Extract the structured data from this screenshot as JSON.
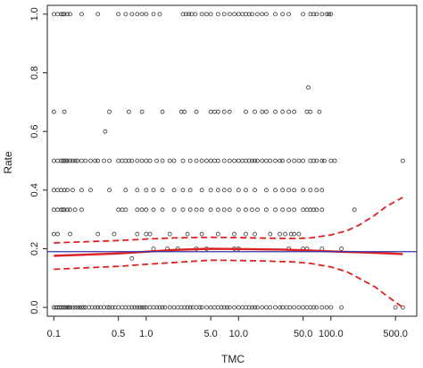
{
  "chart_data": {
    "type": "scatter",
    "title": "",
    "xlabel": "TMC",
    "ylabel": "Rate",
    "x_scale": "log",
    "xlim": [
      0.085,
      850
    ],
    "ylim": [
      -0.03,
      1.03
    ],
    "x_ticks": [
      {
        "value": 0.1,
        "label": "0.1"
      },
      {
        "value": 0.5,
        "label": "0.5"
      },
      {
        "value": 1,
        "label": "1.0"
      },
      {
        "value": 5,
        "label": "5.0"
      },
      {
        "value": 10,
        "label": "10.0"
      },
      {
        "value": 50,
        "label": "50.0"
      },
      {
        "value": 100,
        "label": "100.0"
      },
      {
        "value": 500,
        "label": "500.0"
      }
    ],
    "y_ticks": [
      {
        "value": 0.0,
        "label": "0.0"
      },
      {
        "value": 0.2,
        "label": "0.2"
      },
      {
        "value": 0.4,
        "label": "0.4"
      },
      {
        "value": 0.6,
        "label": "0.6"
      },
      {
        "value": 0.8,
        "label": "0.8"
      },
      {
        "value": 1.0,
        "label": "1.0"
      }
    ],
    "grid": false,
    "legend": "none",
    "points": {
      "1.0": [
        0.1,
        0.11,
        0.12,
        0.125,
        0.13,
        0.14,
        0.15,
        0.2,
        0.3,
        0.5,
        0.6,
        0.7,
        0.8,
        0.9,
        1.0,
        1.2,
        1.4,
        2.5,
        2.7,
        2.9,
        3.1,
        3.4,
        4,
        4.5,
        5,
        6,
        7,
        8,
        9,
        10,
        11,
        12,
        13,
        14,
        16,
        18,
        20,
        25,
        30,
        35,
        50,
        60,
        65,
        70,
        80,
        90,
        95,
        100
      ],
      "0.75": [
        57
      ],
      "0.667": [
        0.1,
        0.13,
        0.4,
        0.65,
        0.9,
        1.5,
        2.4,
        2.6,
        3.5,
        5,
        5.5,
        6,
        7,
        8,
        12,
        15,
        18,
        20,
        25,
        30,
        35,
        40,
        55,
        60,
        75
      ],
      "0.6": [
        0.36
      ],
      "0.5": [
        0.1,
        0.11,
        0.12,
        0.125,
        0.13,
        0.135,
        0.14,
        0.15,
        0.16,
        0.17,
        0.18,
        0.2,
        0.22,
        0.25,
        0.28,
        0.3,
        0.35,
        0.4,
        0.5,
        0.55,
        0.6,
        0.65,
        0.7,
        0.8,
        0.9,
        1.0,
        1.1,
        1.3,
        1.5,
        1.8,
        2,
        2.5,
        3,
        3.5,
        4,
        4.5,
        5,
        5.5,
        6,
        7,
        8,
        9,
        10,
        11,
        12,
        13,
        14,
        15,
        16,
        18,
        20,
        22,
        25,
        28,
        30,
        35,
        40,
        45,
        50,
        60,
        65,
        70,
        80,
        85,
        100,
        110,
        600
      ],
      "0.4": [
        0.1,
        0.11,
        0.12,
        0.13,
        0.14,
        0.16,
        0.2,
        0.25,
        0.4,
        0.6,
        0.8,
        1.0,
        1.2,
        1.5,
        2,
        2.5,
        3,
        4,
        5,
        6,
        7,
        8,
        10,
        12,
        15,
        20,
        25,
        30,
        35,
        40,
        50,
        60,
        70,
        80
      ],
      "0.333": [
        0.1,
        0.11,
        0.12,
        0.125,
        0.13,
        0.14,
        0.15,
        0.17,
        0.2,
        0.5,
        0.55,
        0.6,
        0.8,
        0.9,
        1.0,
        1.2,
        1.5,
        2,
        2.5,
        3,
        3.5,
        4,
        5,
        6,
        7,
        8,
        10,
        12,
        14,
        16,
        20,
        25,
        30,
        35,
        40,
        50,
        55,
        60,
        65,
        70,
        80,
        180
      ],
      "0.25": [
        0.1,
        0.11,
        0.15,
        0.3,
        0.45,
        0.8,
        1.0,
        1.1,
        1.8,
        2.8,
        4,
        6,
        9,
        12,
        15,
        22,
        28,
        32,
        37,
        40,
        45
      ],
      "0.2": [
        1.2,
        1.7,
        2.2,
        3.5,
        4.5,
        9,
        10,
        35,
        50,
        55,
        80,
        130
      ],
      "0.167": [
        0.7
      ],
      "0.0": [
        0.1,
        0.105,
        0.11,
        0.115,
        0.12,
        0.125,
        0.13,
        0.135,
        0.14,
        0.145,
        0.15,
        0.16,
        0.17,
        0.18,
        0.19,
        0.2,
        0.21,
        0.22,
        0.24,
        0.26,
        0.28,
        0.3,
        0.32,
        0.35,
        0.38,
        0.4,
        0.43,
        0.46,
        0.5,
        0.55,
        0.6,
        0.65,
        0.7,
        0.75,
        0.8,
        0.85,
        0.9,
        0.95,
        1.0,
        1.1,
        1.2,
        1.3,
        1.4,
        1.5,
        1.6,
        1.8,
        2,
        2.2,
        2.4,
        2.6,
        2.8,
        3,
        3.2,
        3.5,
        3.8,
        4,
        4.5,
        5,
        5.5,
        6,
        6.5,
        7,
        7.5,
        8,
        9,
        10,
        11,
        12,
        13,
        14,
        15,
        16,
        18,
        20,
        22,
        25,
        28,
        30,
        33,
        36,
        40,
        45,
        50,
        55,
        60,
        65,
        70,
        80,
        90,
        100,
        130,
        500,
        600
      ]
    },
    "series": [
      {
        "style": "solid",
        "color": "#dd2222",
        "x": [
          0.1,
          0.5,
          1,
          2,
          5,
          10,
          30,
          60,
          100,
          200,
          300,
          600
        ],
        "y": [
          0.176,
          0.184,
          0.19,
          0.196,
          0.2,
          0.199,
          0.197,
          0.194,
          0.191,
          0.188,
          0.186,
          0.182
        ]
      },
      {
        "style": "dashed",
        "color": "#dd2222",
        "x": [
          0.1,
          0.5,
          1,
          2,
          5,
          10,
          20,
          40,
          60,
          100,
          150,
          200,
          300,
          400,
          600
        ],
        "y": [
          0.22,
          0.228,
          0.233,
          0.237,
          0.239,
          0.238,
          0.236,
          0.235,
          0.237,
          0.247,
          0.262,
          0.28,
          0.315,
          0.345,
          0.375
        ]
      },
      {
        "style": "dashed",
        "color": "#dd2222",
        "x": [
          0.1,
          0.5,
          1,
          2,
          5,
          10,
          20,
          40,
          60,
          100,
          150,
          200,
          300,
          400,
          600
        ],
        "y": [
          0.13,
          0.14,
          0.147,
          0.153,
          0.161,
          0.16,
          0.158,
          0.155,
          0.15,
          0.138,
          0.121,
          0.1,
          0.07,
          0.04,
          0.0
        ]
      },
      {
        "style": "hline",
        "color": "#3333aa",
        "y": 0.19
      }
    ]
  }
}
